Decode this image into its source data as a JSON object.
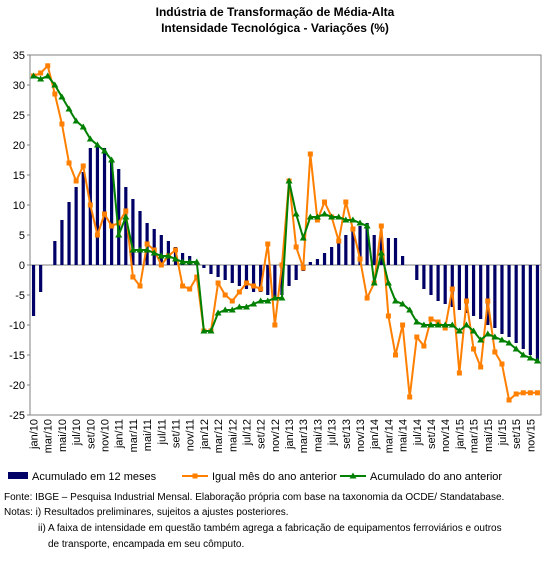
{
  "chart_data": {
    "type": "combo",
    "title": "Indústria de Transformação de Média-Alta",
    "subtitle": "Intensidade Tecnológica - Variações (%)",
    "categories": [
      "jan/10",
      null,
      "mar/10",
      null,
      "mai/10",
      null,
      "jul/10",
      null,
      "set/10",
      null,
      "nov/10",
      null,
      "jan/11",
      null,
      "mar/11",
      null,
      "mai/11",
      null,
      "jul/11",
      null,
      "set/11",
      null,
      "nov/11",
      null,
      "jan/12",
      null,
      "mar/12",
      null,
      "mai/12",
      null,
      "jul/12",
      null,
      "set/12",
      null,
      "nov/12",
      null,
      "jan/13",
      null,
      "mar/13",
      null,
      "mai/13",
      null,
      "jul/13",
      null,
      "set/13",
      null,
      "nov/13",
      null,
      "jan/14",
      null,
      "mar/14",
      null,
      "mai/14",
      null,
      "jul/14",
      null,
      "set/14",
      null,
      "nov/14",
      null,
      "jan/15",
      null,
      "mar/15",
      null,
      "mai/15",
      null,
      "jul/15",
      null,
      "set/15",
      null,
      "nov/15",
      null
    ],
    "series": [
      {
        "name": "Acumulado em 12 meses",
        "type": "bar",
        "color": "#000066",
        "values": [
          -8.5,
          -4.5,
          0,
          4,
          7.5,
          10.5,
          13,
          15.5,
          19.5,
          20,
          19.5,
          17.5,
          16,
          13,
          11,
          9,
          7,
          6,
          5,
          4,
          3,
          2,
          1.5,
          0.5,
          -0.5,
          -1.5,
          -2,
          -2.5,
          -3,
          -3.5,
          -4,
          -4.5,
          -4.5,
          -5,
          -5.5,
          -5,
          -3.5,
          -2.5,
          -1,
          0.5,
          1,
          2,
          3,
          4,
          5,
          6,
          6.5,
          7,
          5,
          5,
          4.5,
          4.5,
          1.5,
          0,
          -2.5,
          -4,
          -5,
          -6,
          -6.5,
          -7,
          -7.5,
          -8,
          -8.5,
          -9,
          -10,
          -10.5,
          -11.5,
          -12,
          -13,
          -14,
          -15,
          -16
        ]
      },
      {
        "name": "Igual mês do ano anterior",
        "type": "line",
        "marker": "square",
        "color": "#ff7f00",
        "values": [
          31.5,
          32,
          33.2,
          28.5,
          23.5,
          17,
          14,
          16.5,
          10,
          5,
          8.5,
          6.5,
          7,
          9,
          -2,
          -3.5,
          3.5,
          2.5,
          0,
          1.5,
          2.5,
          -3.5,
          -4,
          -2,
          -11,
          -11,
          -3,
          -5,
          -6,
          -4.5,
          -3,
          -3.5,
          -4,
          3.5,
          -10,
          0,
          14,
          3,
          -0.5,
          18.5,
          7.5,
          10.5,
          8,
          4,
          10.5,
          6,
          1,
          -5.5,
          -3,
          6.5,
          -8.5,
          -15,
          -10,
          -22,
          -12,
          -13.5,
          -9,
          -9.5,
          -10.5,
          -4,
          -18,
          -6,
          -14,
          -17,
          -6,
          -14.5,
          -16.5,
          -22.5,
          -21.5,
          -21.3,
          -21.3,
          -21.3
        ]
      },
      {
        "name": "Acumulado do ano anterior",
        "type": "line",
        "marker": "triangle",
        "color": "#008000",
        "values": [
          31.5,
          31,
          31.5,
          30,
          28,
          26,
          24,
          23,
          21,
          20,
          19,
          17.5,
          5,
          8,
          2.5,
          2.5,
          2.5,
          2,
          1.5,
          1.5,
          1,
          0.5,
          0.5,
          0.5,
          -11,
          -11,
          -8,
          -7.5,
          -7.5,
          -7,
          -7,
          -6.5,
          -6,
          -6,
          -5.5,
          -5.5,
          14,
          8.5,
          4.5,
          8,
          8,
          8.5,
          8,
          8,
          7.5,
          7.5,
          7,
          6.5,
          -3,
          2,
          -3,
          -6,
          -6.5,
          -7.5,
          -9.5,
          -10,
          -10,
          -10,
          -10,
          -10,
          -11,
          -10,
          -11,
          -12.5,
          -11.5,
          -12,
          -12.5,
          -13,
          -14,
          -15,
          -15.5,
          -16
        ]
      }
    ],
    "ylim": [
      -25,
      35
    ],
    "yticks": [
      -25,
      -20,
      -15,
      -10,
      -5,
      0,
      5,
      10,
      15,
      20,
      25,
      30,
      35
    ],
    "grid": false,
    "notes": [
      "Fonte: IBGE – Pesquisa Industrial Mensal. Elaboração própria com base na taxonomia da OCDE/ Standatabase.",
      "Notas: i) Resultados preliminares, sujeitos a ajustes posteriores.",
      "ii) A faixa de intensidade em questão também agrega a fabricação de equipamentos ferroviários e outros",
      "de transporte, encampada em seu cômputo."
    ]
  }
}
